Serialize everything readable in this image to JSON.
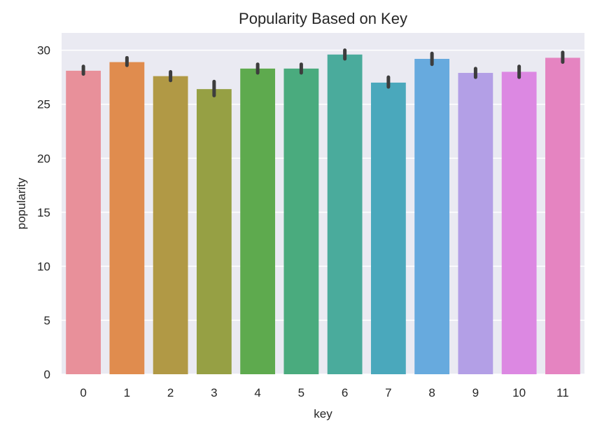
{
  "chart_data": {
    "type": "bar",
    "title": "Popularity Based on Key",
    "xlabel": "key",
    "ylabel": "popularity",
    "categories": [
      "0",
      "1",
      "2",
      "3",
      "4",
      "5",
      "6",
      "7",
      "8",
      "9",
      "10",
      "11"
    ],
    "values": [
      28.1,
      28.9,
      27.6,
      26.4,
      28.3,
      28.3,
      29.6,
      27.0,
      29.2,
      27.9,
      28.0,
      29.3
    ],
    "error_low": [
      27.8,
      28.6,
      27.2,
      25.8,
      27.9,
      27.9,
      29.2,
      26.6,
      28.7,
      27.5,
      27.5,
      28.9
    ],
    "error_high": [
      28.5,
      29.3,
      28.0,
      27.1,
      28.7,
      28.7,
      30.0,
      27.5,
      29.7,
      28.3,
      28.5,
      29.8
    ],
    "colors": [
      "#e8909a",
      "#e08c4e",
      "#b19945",
      "#96a044",
      "#5eaa4e",
      "#4aab7e",
      "#4aab9c",
      "#4aa8bc",
      "#67aade",
      "#b39fe6",
      "#dc88e2",
      "#e584c1"
    ],
    "yticks": [
      0,
      5,
      10,
      15,
      20,
      25,
      30
    ],
    "ylim": [
      0,
      31.6
    ],
    "grid": true,
    "background": "#eaeaf2",
    "error_color": "#3d3d3d"
  }
}
